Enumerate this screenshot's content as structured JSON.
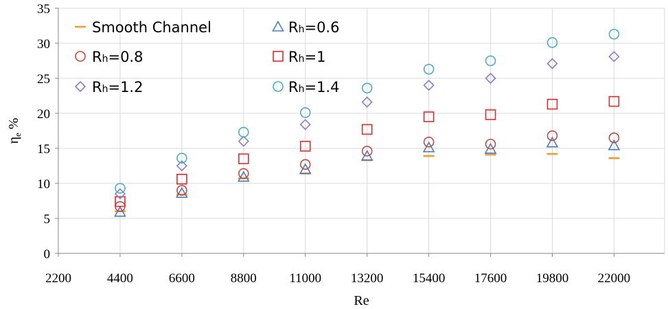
{
  "chart_data": {
    "type": "scatter",
    "title": "",
    "xlabel": "Re",
    "ylabel": "ηe %",
    "ylabel_main": "η",
    "ylabel_sub": "e",
    "ylabel_unit": "%",
    "xlim": [
      2200,
      23800
    ],
    "ylim": [
      0,
      35
    ],
    "x_ticks": [
      "2200",
      "4400",
      "6600",
      "8800",
      "11000",
      "13200",
      "15400",
      "17600",
      "19800",
      "22000"
    ],
    "y_ticks": [
      "0",
      "5",
      "10",
      "15",
      "20",
      "25",
      "30",
      "35"
    ],
    "grid": true,
    "legend_position": "top-left",
    "x": [
      4400,
      6600,
      8800,
      11000,
      13200,
      15400,
      17600,
      19800,
      22000
    ],
    "series": [
      {
        "name": "Smooth Channel",
        "label_main": "Smooth Channel",
        "label_sub": "",
        "label_tail": "",
        "marker": "dash",
        "color": "#F39C34",
        "values": [
          6.0,
          8.4,
          10.7,
          11.4,
          13.3,
          13.9,
          14.1,
          14.2,
          13.6
        ]
      },
      {
        "name": "Rh=0.6",
        "label_main": "R",
        "label_sub": "h",
        "label_tail": "=0.6",
        "marker": "triangle",
        "color": "#4A7EBB",
        "values": [
          5.9,
          8.6,
          10.9,
          12.0,
          13.9,
          15.1,
          14.9,
          15.8,
          15.4
        ]
      },
      {
        "name": "Rh=0.8",
        "label_main": "R",
        "label_sub": "h",
        "label_tail": "=0.8",
        "marker": "circle",
        "color": "#BE4B48",
        "values": [
          6.7,
          9.0,
          11.4,
          12.7,
          14.6,
          15.9,
          15.6,
          16.8,
          16.5
        ]
      },
      {
        "name": "Rh=1",
        "label_main": "R",
        "label_sub": "h",
        "label_tail": "=1",
        "marker": "square",
        "color": "#E8262B",
        "values": [
          7.4,
          10.6,
          13.5,
          15.3,
          17.7,
          19.5,
          19.8,
          21.3,
          21.7
        ]
      },
      {
        "name": "Rh=1.2",
        "label_main": "R",
        "label_sub": "h",
        "label_tail": "=1.2",
        "marker": "diamond",
        "color": "#8E7CC3",
        "values": [
          8.5,
          12.5,
          16.0,
          18.4,
          21.6,
          24.0,
          25.0,
          27.1,
          28.1
        ]
      },
      {
        "name": "Rh=1.4",
        "label_main": "R",
        "label_sub": "h",
        "label_tail": "=1.4",
        "marker": "circle",
        "color": "#4BACC6",
        "values": [
          9.3,
          13.6,
          17.3,
          20.1,
          23.6,
          26.3,
          27.5,
          30.1,
          31.3
        ]
      }
    ]
  }
}
